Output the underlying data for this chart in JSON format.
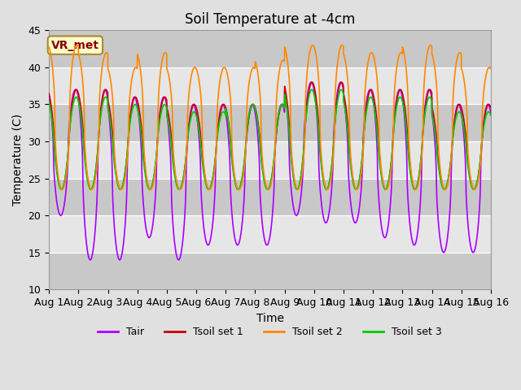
{
  "title": "Soil Temperature at -4cm",
  "xlabel": "Time",
  "ylabel": "Temperature (C)",
  "ylim": [
    10,
    45
  ],
  "xlim": [
    0,
    15
  ],
  "xtick_labels": [
    "Aug 1",
    "Aug 2",
    "Aug 3",
    "Aug 4",
    "Aug 5",
    "Aug 6",
    "Aug 7",
    "Aug 8",
    "Aug 9",
    "Aug 10",
    "Aug 11",
    "Aug 12",
    "Aug 13",
    "Aug 14",
    "Aug 15",
    "Aug 16"
  ],
  "ytick_vals": [
    10,
    15,
    20,
    25,
    30,
    35,
    40,
    45
  ],
  "colors": {
    "Tair": "#AA00FF",
    "Tsoil1": "#CC0000",
    "Tsoil2": "#FF8800",
    "Tsoil3": "#00CC00"
  },
  "legend_labels": [
    "Tair",
    "Tsoil set 1",
    "Tsoil set 2",
    "Tsoil set 3"
  ],
  "annotation_text": "VR_met",
  "annotation_facecolor": "#FFFFCC",
  "annotation_edgecolor": "#AA8833",
  "background_color": "#E0E0E0",
  "plot_bg_color": "#C8C8C8",
  "white_band_alpha": 0.55,
  "title_fontsize": 12,
  "label_fontsize": 10,
  "tick_fontsize": 9,
  "line_width": 1.2,
  "n_days": 15,
  "points_per_day": 288
}
